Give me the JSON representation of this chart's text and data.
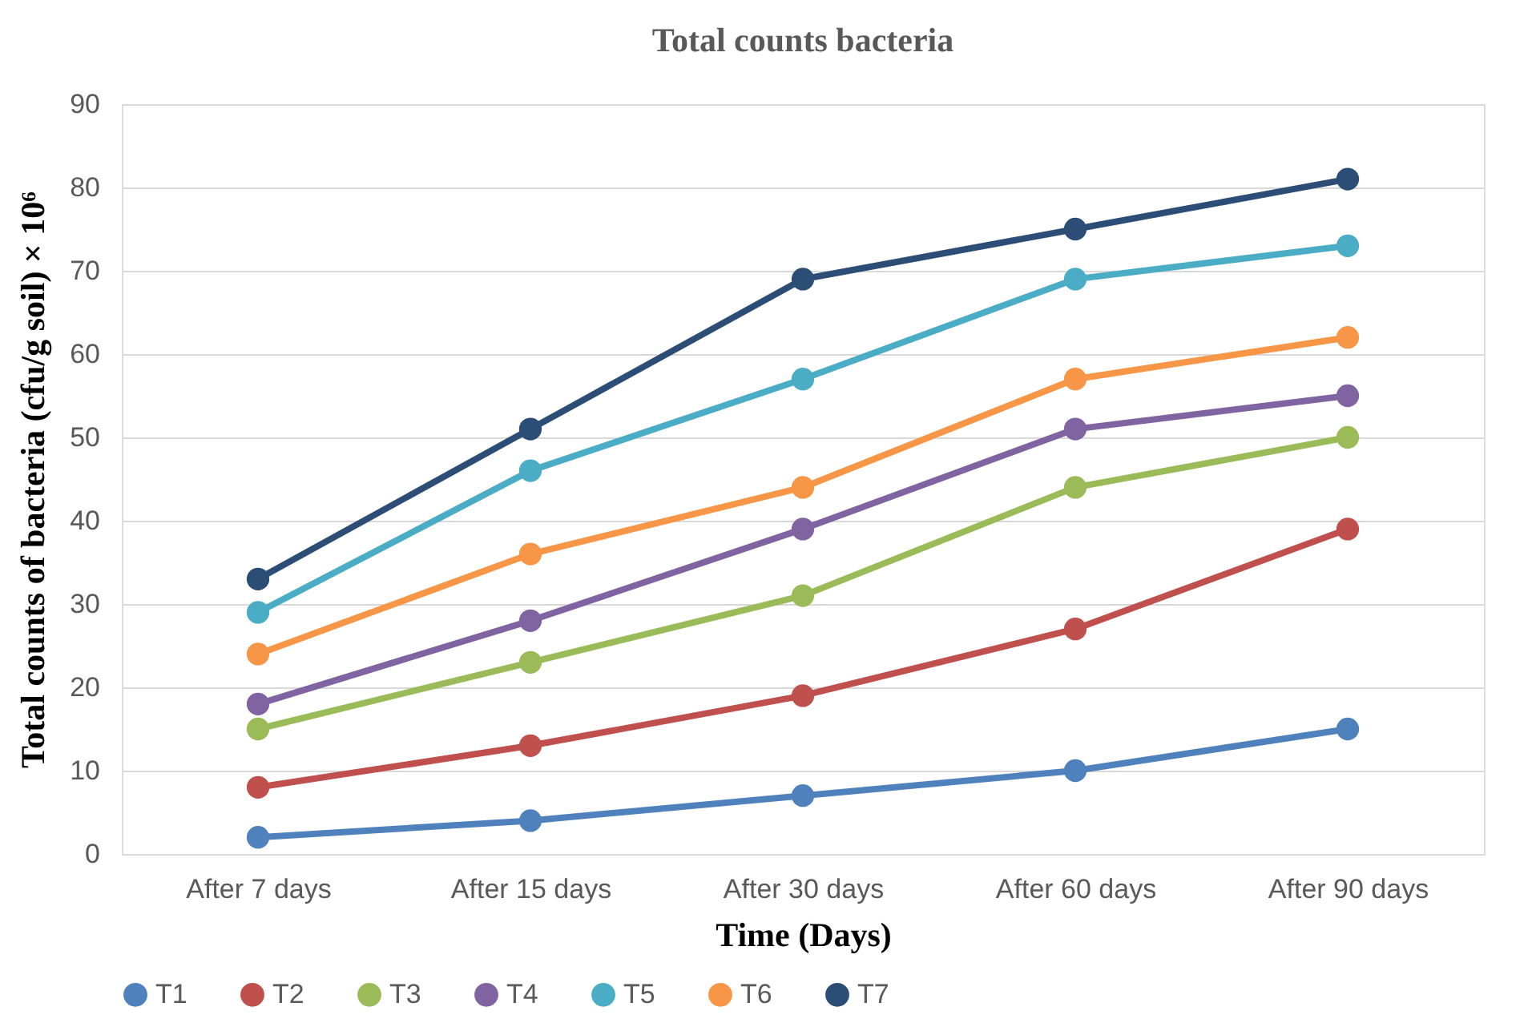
{
  "chart_data": {
    "type": "line",
    "title": "Total counts bacteria",
    "xlabel": "Time (Days)",
    "ylabel": "Total counts of bacteria (cfu/g soil) × 10⁶",
    "categories": [
      "After 7 days",
      "After 15 days",
      "After 30 days",
      "After 60 days",
      "After 90 days"
    ],
    "series": [
      {
        "name": "T1",
        "color": "#4f81bd",
        "values": [
          2,
          4,
          7,
          10,
          15
        ]
      },
      {
        "name": "T2",
        "color": "#c0504d",
        "values": [
          8,
          13,
          19,
          27,
          39
        ]
      },
      {
        "name": "T3",
        "color": "#9bbb59",
        "values": [
          15,
          23,
          31,
          44,
          50
        ]
      },
      {
        "name": "T4",
        "color": "#8064a2",
        "values": [
          18,
          28,
          39,
          51,
          55
        ]
      },
      {
        "name": "T5",
        "color": "#4bacc6",
        "values": [
          29,
          46,
          57,
          69,
          73
        ]
      },
      {
        "name": "T6",
        "color": "#f79646",
        "values": [
          24,
          36,
          44,
          57,
          62
        ]
      },
      {
        "name": "T7",
        "color": "#2c4d75",
        "values": [
          33,
          51,
          69,
          75,
          81
        ]
      }
    ],
    "ylim": [
      0,
      90
    ],
    "yticks": [
      0,
      10,
      20,
      30,
      40,
      50,
      60,
      70,
      80,
      90
    ],
    "grid": "y",
    "legend": "bottom",
    "marker": "circle",
    "line_style": "solid"
  }
}
